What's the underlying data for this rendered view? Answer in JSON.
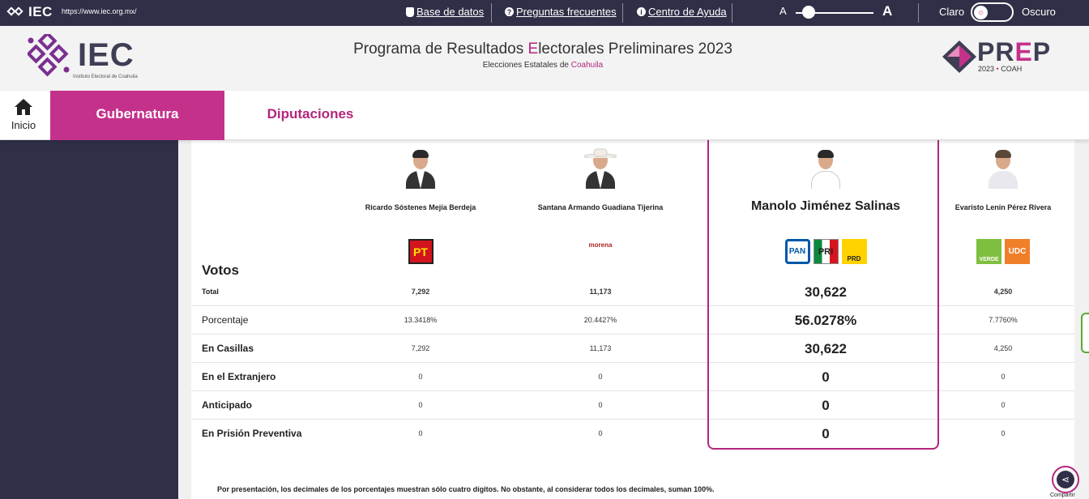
{
  "topbar": {
    "logo_text": "IEC",
    "url": "https://www.iec.org.mx/",
    "links": [
      {
        "label": "Base de datos",
        "icon": "database-icon"
      },
      {
        "label": "Preguntas frecuentes",
        "icon": "question-circle-icon"
      },
      {
        "label": "Centro de Ayuda",
        "icon": "info-circle-icon"
      }
    ],
    "font_small": "A",
    "font_large": "A",
    "theme_light": "Claro",
    "theme_dark": "Oscuro"
  },
  "header": {
    "iec_logo_text": "IEC",
    "iec_logo_sub": "Instituto Electoral de Coahuila",
    "title_pre": "Programa de Resultados ",
    "title_hl": "E",
    "title_post": "lectorales Preliminares 2023",
    "subtitle_pre": "Elecciones Estatales de ",
    "subtitle_hl": "Coahuila",
    "prep_pre": "PR",
    "prep_e": "E",
    "prep_post": "P",
    "prep_year": "2023",
    "prep_dot": "•",
    "prep_state": "COAH"
  },
  "nav": {
    "home_label": "Inicio",
    "tab_active": "Gubernatura",
    "tab_other": "Diputaciones"
  },
  "table": {
    "votos_title": "Votos",
    "candidates": [
      {
        "name": "Ricardo Sóstenes Mejía Berdeja",
        "parties": [
          "PT"
        ]
      },
      {
        "name": "Santana Armando Guadiana Tijerina",
        "parties": [
          "morena"
        ]
      },
      {
        "name": "Manolo Jiménez Salinas",
        "parties": [
          "PAN",
          "PRI",
          "PRD"
        ]
      },
      {
        "name": "Evaristo Lenin Pérez Rivera",
        "parties": [
          "VERDE",
          "UDC"
        ]
      }
    ],
    "rows": [
      {
        "label": "Total",
        "values": [
          "7,292",
          "11,173",
          "30,622",
          "4,250"
        ]
      },
      {
        "label": "Porcentaje",
        "values": [
          "13.3418%",
          "20.4427%",
          "56.0278%",
          "7.7760%"
        ]
      },
      {
        "label": "En Casillas",
        "values": [
          "7,292",
          "11,173",
          "30,622",
          "4,250"
        ]
      },
      {
        "label": "En el Extranjero",
        "values": [
          "0",
          "0",
          "0",
          "0"
        ]
      },
      {
        "label": "Anticipado",
        "values": [
          "0",
          "0",
          "0",
          "0"
        ]
      },
      {
        "label": "En Prisión Preventiva",
        "values": [
          "0",
          "0",
          "0",
          "0"
        ]
      }
    ]
  },
  "note": "Por presentación, los decimales de los porcentajes muestran sólo cuatro dígitos. No obstante, al considerar todos los decimales, suman 100%.",
  "share_label": "Compartir",
  "colors": {
    "accent": "#c4318b",
    "dark": "#2f2f47"
  }
}
